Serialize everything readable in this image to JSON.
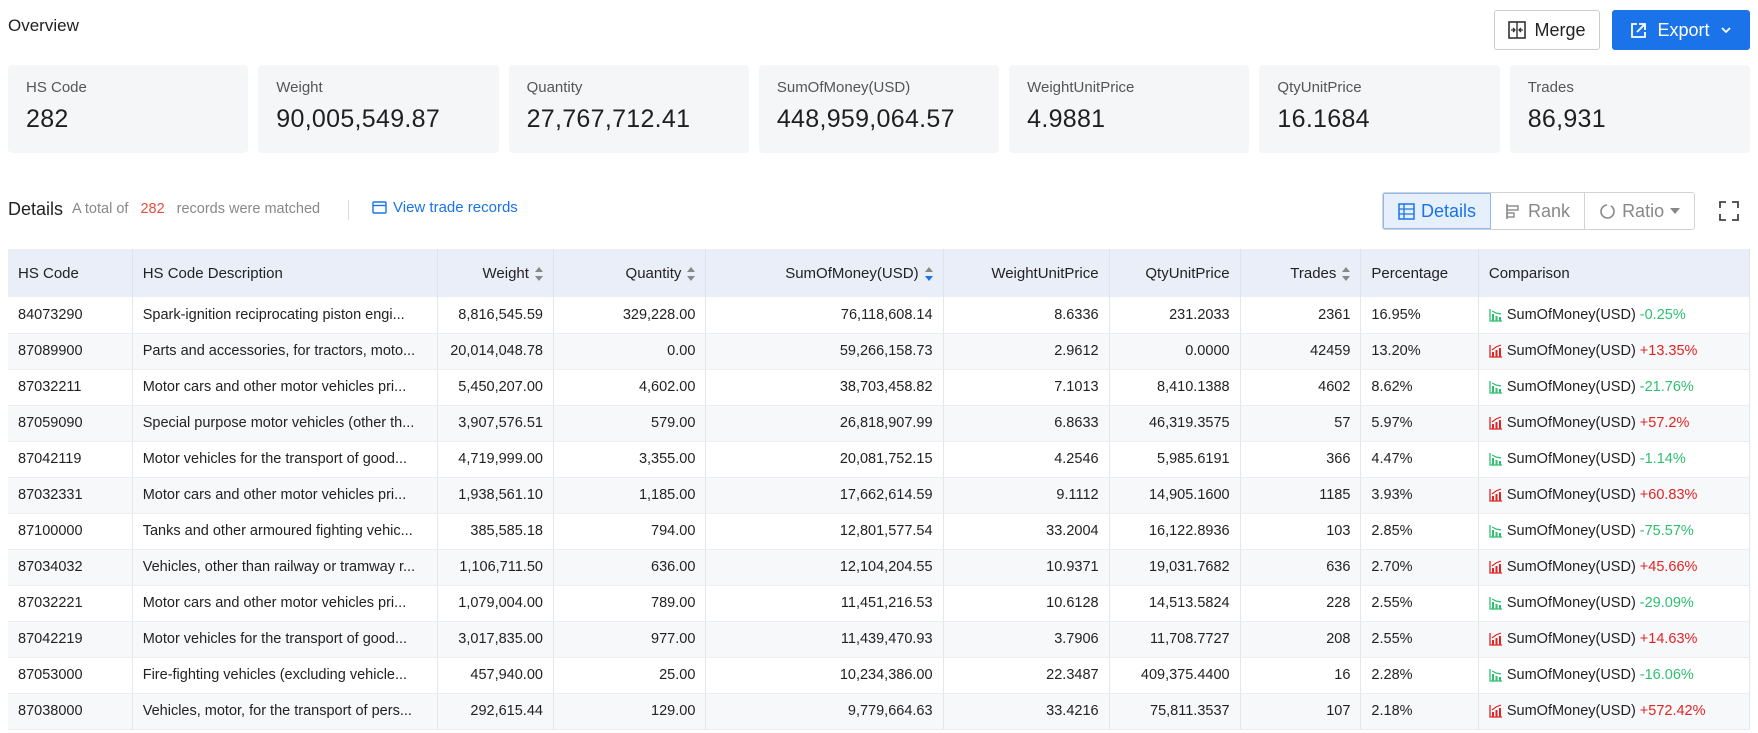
{
  "header": {
    "title": "Overview",
    "merge_label": "Merge",
    "export_label": "Export"
  },
  "cards": [
    {
      "label": "HS Code",
      "value": "282"
    },
    {
      "label": "Weight",
      "value": "90,005,549.87"
    },
    {
      "label": "Quantity",
      "value": "27,767,712.41"
    },
    {
      "label": "SumOfMoney(USD)",
      "value": "448,959,064.57"
    },
    {
      "label": "WeightUnitPrice",
      "value": "4.9881"
    },
    {
      "label": "QtyUnitPrice",
      "value": "16.1684"
    },
    {
      "label": "Trades",
      "value": "86,931"
    }
  ],
  "details": {
    "title": "Details",
    "prefix": "A total of",
    "count": "282",
    "suffix": "records were matched",
    "view_link": "View trade records",
    "tabs": {
      "details": "Details",
      "rank": "Rank",
      "ratio": "Ratio"
    }
  },
  "table": {
    "columns": [
      "HS Code",
      "HS Code Description",
      "Weight",
      "Quantity",
      "SumOfMoney(USD)",
      "WeightUnitPrice",
      "QtyUnitPrice",
      "Trades",
      "Percentage",
      "Comparison"
    ],
    "comparison_metric": "SumOfMoney(USD)",
    "rows": [
      {
        "code": "84073290",
        "desc": "Spark-ignition reciprocating piston engi...",
        "weight": "8,816,545.59",
        "qty": "329,228.00",
        "money": "76,118,608.14",
        "wup": "8.6336",
        "qup": "231.2033",
        "trades": "2361",
        "pct": "16.95%",
        "change": "-0.25%",
        "trend": "down"
      },
      {
        "code": "87089900",
        "desc": "Parts and accessories, for tractors, moto...",
        "weight": "20,014,048.78",
        "qty": "0.00",
        "money": "59,266,158.73",
        "wup": "2.9612",
        "qup": "0.0000",
        "trades": "42459",
        "pct": "13.20%",
        "change": "+13.35%",
        "trend": "up"
      },
      {
        "code": "87032211",
        "desc": "Motor cars and other motor vehicles pri...",
        "weight": "5,450,207.00",
        "qty": "4,602.00",
        "money": "38,703,458.82",
        "wup": "7.1013",
        "qup": "8,410.1388",
        "trades": "4602",
        "pct": "8.62%",
        "change": "-21.76%",
        "trend": "down"
      },
      {
        "code": "87059090",
        "desc": "Special purpose motor vehicles (other th...",
        "weight": "3,907,576.51",
        "qty": "579.00",
        "money": "26,818,907.99",
        "wup": "6.8633",
        "qup": "46,319.3575",
        "trades": "57",
        "pct": "5.97%",
        "change": "+57.2%",
        "trend": "up"
      },
      {
        "code": "87042119",
        "desc": "Motor vehicles for the transport of good...",
        "weight": "4,719,999.00",
        "qty": "3,355.00",
        "money": "20,081,752.15",
        "wup": "4.2546",
        "qup": "5,985.6191",
        "trades": "366",
        "pct": "4.47%",
        "change": "-1.14%",
        "trend": "down"
      },
      {
        "code": "87032331",
        "desc": "Motor cars and other motor vehicles pri...",
        "weight": "1,938,561.10",
        "qty": "1,185.00",
        "money": "17,662,614.59",
        "wup": "9.1112",
        "qup": "14,905.1600",
        "trades": "1185",
        "pct": "3.93%",
        "change": "+60.83%",
        "trend": "up"
      },
      {
        "code": "87100000",
        "desc": "Tanks and other armoured fighting vehic...",
        "weight": "385,585.18",
        "qty": "794.00",
        "money": "12,801,577.54",
        "wup": "33.2004",
        "qup": "16,122.8936",
        "trades": "103",
        "pct": "2.85%",
        "change": "-75.57%",
        "trend": "down"
      },
      {
        "code": "87034032",
        "desc": "Vehicles, other than railway or tramway r...",
        "weight": "1,106,711.50",
        "qty": "636.00",
        "money": "12,104,204.55",
        "wup": "10.9371",
        "qup": "19,031.7682",
        "trades": "636",
        "pct": "2.70%",
        "change": "+45.66%",
        "trend": "up"
      },
      {
        "code": "87032221",
        "desc": "Motor cars and other motor vehicles pri...",
        "weight": "1,079,004.00",
        "qty": "789.00",
        "money": "11,451,216.53",
        "wup": "10.6128",
        "qup": "14,513.5824",
        "trades": "228",
        "pct": "2.55%",
        "change": "-29.09%",
        "trend": "down"
      },
      {
        "code": "87042219",
        "desc": "Motor vehicles for the transport of good...",
        "weight": "3,017,835.00",
        "qty": "977.00",
        "money": "11,439,470.93",
        "wup": "3.7906",
        "qup": "11,708.7727",
        "trades": "208",
        "pct": "2.55%",
        "change": "+14.63%",
        "trend": "up"
      },
      {
        "code": "87053000",
        "desc": "Fire-fighting vehicles (excluding vehicle...",
        "weight": "457,940.00",
        "qty": "25.00",
        "money": "10,234,386.00",
        "wup": "22.3487",
        "qup": "409,375.4400",
        "trades": "16",
        "pct": "2.28%",
        "change": "-16.06%",
        "trend": "down"
      },
      {
        "code": "87038000",
        "desc": "Vehicles, motor, for the transport of pers...",
        "weight": "292,615.44",
        "qty": "129.00",
        "money": "9,779,664.63",
        "wup": "33.4216",
        "qup": "75,811.3537",
        "trades": "107",
        "pct": "2.18%",
        "change": "+572.42%",
        "trend": "up"
      }
    ]
  },
  "colors": {
    "accent": "#1a73e8",
    "up": "#e02424",
    "down": "#2fbf71",
    "count": "#e84c3d"
  }
}
